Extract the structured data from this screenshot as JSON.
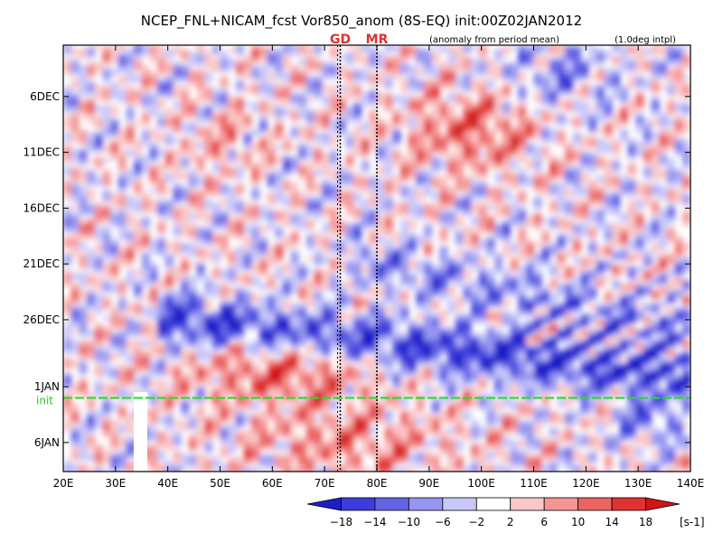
{
  "chart_data": {
    "type": "heatmap",
    "title": "NCEP_FNL+NICAM_fcst Vor850_anom (8S-EQ) init:00Z02JAN2012",
    "subtitle_left": "(anomaly from period mean)",
    "subtitle_right": "(1.0deg intpl)",
    "x_axis": {
      "range": [
        20,
        140
      ],
      "ticks": [
        20,
        30,
        40,
        50,
        60,
        70,
        80,
        90,
        100,
        110,
        120,
        130,
        140
      ],
      "tick_labels": [
        "20E",
        "30E",
        "40E",
        "50E",
        "60E",
        "70E",
        "80E",
        "90E",
        "100E",
        "110E",
        "120E",
        "130E",
        "140E"
      ]
    },
    "y_axis": {
      "range_days_from_1DEC": [
        1.4,
        39.6
      ],
      "ticks": [
        6,
        11,
        16,
        21,
        26,
        32,
        37
      ],
      "tick_labels": [
        "6DEC",
        "11DEC",
        "16DEC",
        "21DEC",
        "26DEC",
        "1JAN",
        "6JAN"
      ],
      "inverted": true
    },
    "init_line": {
      "label": "init",
      "day": 33,
      "color": "#22dd22"
    },
    "markers": [
      {
        "label": "GD",
        "lon": 73
      },
      {
        "label": "MR",
        "lon": 80
      }
    ],
    "colorbar": {
      "levels": [
        -18,
        -14,
        -10,
        -6,
        -2,
        2,
        6,
        10,
        14,
        18
      ],
      "tick_labels": [
        "−18",
        "−14",
        "−10",
        "−6",
        "−2",
        "2",
        "6",
        "10",
        "14",
        "18"
      ],
      "unit": "[s-1]",
      "colors": [
        "#1e1ec8",
        "#3c3cdc",
        "#6464e6",
        "#9696f0",
        "#c8c8fa",
        "#ffffff",
        "#fac8c8",
        "#f59696",
        "#eb6464",
        "#e13232",
        "#d21414"
      ]
    },
    "features": {
      "negative_band": "elongated negative anomaly from ~40E on 26DEC extending east to ~140E",
      "positive_region": "positive anomalies 40E-100E late DEC into JAN"
    }
  }
}
